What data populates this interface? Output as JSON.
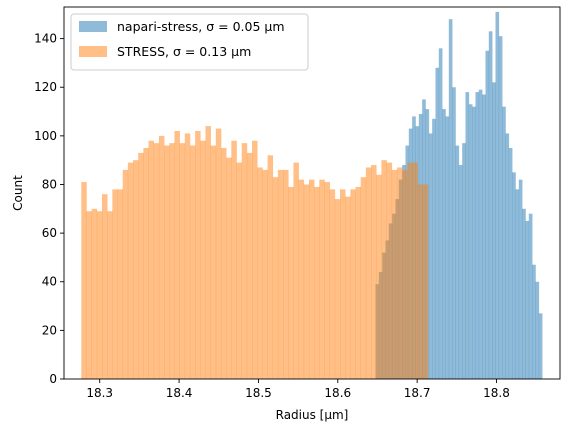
{
  "chart_data": {
    "type": "histogram",
    "xlabel": "Radius [µm]",
    "ylabel": "Count",
    "xlim": [
      18.255,
      18.88
    ],
    "ylim": [
      0,
      153
    ],
    "xticks": [
      18.3,
      18.4,
      18.5,
      18.6,
      18.7,
      18.8
    ],
    "xtick_labels": [
      "18.3",
      "18.4",
      "18.5",
      "18.6",
      "18.7",
      "18.8"
    ],
    "yticks": [
      0,
      20,
      40,
      60,
      80,
      100,
      120,
      140
    ],
    "ytick_labels": [
      "0",
      "20",
      "40",
      "60",
      "80",
      "100",
      "120",
      "140"
    ],
    "grid": false,
    "legend_position": "top-left",
    "legend": [
      {
        "label": "napari-stress, σ = 0.05 µm",
        "color": "#1f77b4",
        "alpha": 0.5
      },
      {
        "label": "STRESS, σ = 0.13 µm",
        "color": "#ff7f0e",
        "alpha": 0.5
      }
    ],
    "series": [
      {
        "name": "napari-stress, σ = 0.05 µm",
        "color": "#1f77b4",
        "alpha": 0.5,
        "bin_start": 18.6475,
        "bin_width": 0.0042,
        "values": [
          39,
          44,
          52,
          57,
          64,
          68,
          74,
          82,
          88,
          96,
          103,
          108,
          104,
          109,
          115,
          111,
          101,
          107,
          128,
          136,
          111,
          108,
          148,
          120,
          96,
          88,
          97,
          118,
          113,
          112,
          118,
          119,
          117,
          135,
          143,
          122,
          151,
          141,
          112,
          101,
          95,
          85,
          78,
          82,
          70,
          65,
          68,
          47,
          40,
          27
        ]
      },
      {
        "name": "STRESS, σ = 0.13 µm",
        "color": "#ff7f0e",
        "alpha": 0.5,
        "bin_start": 18.2768,
        "bin_width": 0.00652,
        "values": [
          81,
          69,
          70,
          69,
          76,
          69,
          78,
          78,
          86,
          89,
          90,
          93,
          95,
          98,
          97,
          100,
          96,
          97,
          102,
          97,
          101,
          96,
          102,
          98,
          104,
          96,
          103,
          95,
          91,
          98,
          89,
          97,
          93,
          98,
          87,
          86,
          92,
          83,
          86,
          86,
          79,
          89,
          82,
          80,
          82,
          79,
          82,
          81,
          78,
          74,
          78,
          75,
          78,
          79,
          83,
          87,
          88,
          84,
          90,
          89,
          86,
          87,
          86,
          89,
          89,
          80,
          80
        ]
      }
    ]
  }
}
